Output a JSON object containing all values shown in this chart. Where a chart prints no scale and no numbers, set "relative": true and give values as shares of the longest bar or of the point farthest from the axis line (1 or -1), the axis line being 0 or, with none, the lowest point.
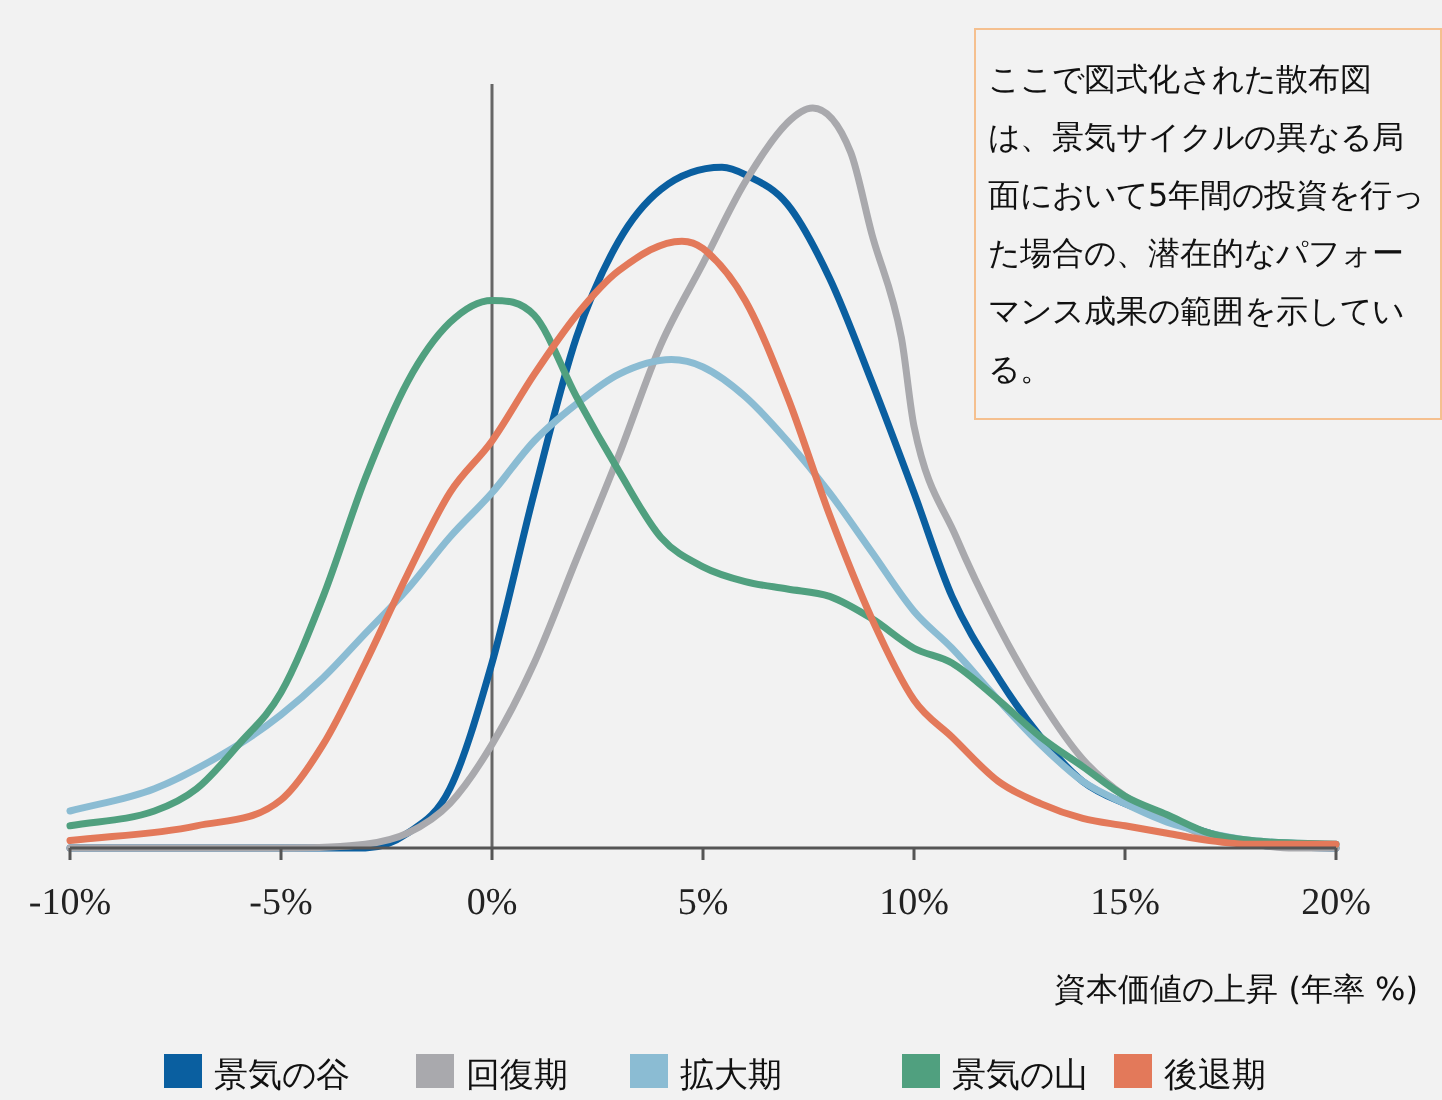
{
  "chart_data": {
    "type": "line",
    "relative": true,
    "xlabel": "資本価値の上昇 (年率 %)",
    "xlim": [
      -10,
      20
    ],
    "xticks": [
      {
        "value": -10,
        "label": "-10%"
      },
      {
        "value": -5,
        "label": "-5%"
      },
      {
        "value": 0,
        "label": "0%"
      },
      {
        "value": 5,
        "label": "5%"
      },
      {
        "value": 10,
        "label": "10%"
      },
      {
        "value": 15,
        "label": "15%"
      },
      {
        "value": 20,
        "label": "20%"
      }
    ],
    "ref_lines": [
      {
        "axis": "x",
        "value": 0,
        "color": "#666666"
      }
    ],
    "annotations": [
      "ここで図式化された散布図は、景気サイクルの異なる局面において5年間の投資を行った場合の、潜在的なパフォーマンス成果の範囲を示している。"
    ],
    "legend": "bottom",
    "grid": false,
    "marker": "none",
    "series": [
      {
        "name": "景気の谷",
        "color": "#0a5fa0",
        "x": [
          -10,
          -5,
          -3,
          -2,
          -1,
          0,
          1,
          2,
          3,
          4,
          5.45,
          6,
          7,
          8,
          9,
          10,
          10.9,
          12,
          13,
          14,
          15,
          16,
          17,
          18,
          20
        ],
        "values": [
          0,
          0,
          0,
          0.02,
          0.08,
          0.25,
          0.48,
          0.69,
          0.82,
          0.89,
          0.92,
          0.91,
          0.87,
          0.77,
          0.63,
          0.48,
          0.34,
          0.23,
          0.15,
          0.09,
          0.06,
          0.04,
          0.02,
          0.005,
          0
        ]
      },
      {
        "name": "回復期",
        "color": "#a9a9ad",
        "x": [
          -10,
          -5,
          -3,
          -2,
          -1,
          0,
          1,
          2,
          3,
          4,
          5,
          6,
          7,
          7.6,
          8.5,
          9,
          9.7,
          10,
          11,
          12,
          13,
          14,
          15,
          16,
          17,
          18,
          19,
          20
        ],
        "values": [
          0,
          0,
          0.005,
          0.02,
          0.06,
          0.14,
          0.25,
          0.39,
          0.53,
          0.68,
          0.79,
          0.9,
          0.98,
          1,
          0.94,
          0.83,
          0.69,
          0.57,
          0.42,
          0.3,
          0.2,
          0.12,
          0.07,
          0.04,
          0.015,
          0.005,
          0,
          0
        ]
      },
      {
        "name": "拡大期",
        "color": "#8bbcd3",
        "x": [
          -10,
          -8,
          -6,
          -5,
          -4,
          -3,
          -2,
          -1,
          0,
          1,
          2,
          3,
          4.25,
          5,
          6,
          7,
          8,
          9,
          10,
          10.9,
          12,
          13,
          14,
          15,
          16,
          17,
          18,
          20
        ],
        "values": [
          0.05,
          0.08,
          0.14,
          0.18,
          0.23,
          0.29,
          0.35,
          0.42,
          0.48,
          0.55,
          0.6,
          0.64,
          0.66,
          0.65,
          0.61,
          0.55,
          0.48,
          0.4,
          0.32,
          0.27,
          0.2,
          0.14,
          0.09,
          0.06,
          0.035,
          0.02,
          0.01,
          0.005
        ]
      },
      {
        "name": "景気の山",
        "color": "#50a07f",
        "x": [
          -10,
          -8,
          -7,
          -6,
          -5,
          -4,
          -3,
          -2,
          -1,
          0,
          1,
          2,
          3,
          4,
          5,
          6,
          7,
          8,
          9,
          10,
          10.9,
          12,
          13,
          14,
          15,
          16,
          17,
          18,
          20
        ],
        "values": [
          0.03,
          0.05,
          0.08,
          0.14,
          0.21,
          0.34,
          0.5,
          0.63,
          0.71,
          0.74,
          0.72,
          0.61,
          0.51,
          0.42,
          0.38,
          0.36,
          0.35,
          0.34,
          0.31,
          0.27,
          0.25,
          0.2,
          0.15,
          0.11,
          0.07,
          0.045,
          0.02,
          0.01,
          0.005
        ]
      },
      {
        "name": "後退期",
        "color": "#e3795a",
        "x": [
          -10,
          -7,
          -5,
          -4,
          -3,
          -2,
          -1,
          0,
          1,
          2,
          3,
          4.5,
          5,
          6,
          7,
          8,
          9,
          10,
          10.9,
          12,
          13,
          14,
          15,
          16,
          17,
          18,
          20
        ],
        "values": [
          0.01,
          0.03,
          0.065,
          0.14,
          0.25,
          0.37,
          0.48,
          0.55,
          0.64,
          0.72,
          0.78,
          0.82,
          0.81,
          0.74,
          0.61,
          0.45,
          0.31,
          0.2,
          0.15,
          0.09,
          0.06,
          0.04,
          0.03,
          0.02,
          0.01,
          0.005,
          0.005
        ]
      }
    ]
  }
}
